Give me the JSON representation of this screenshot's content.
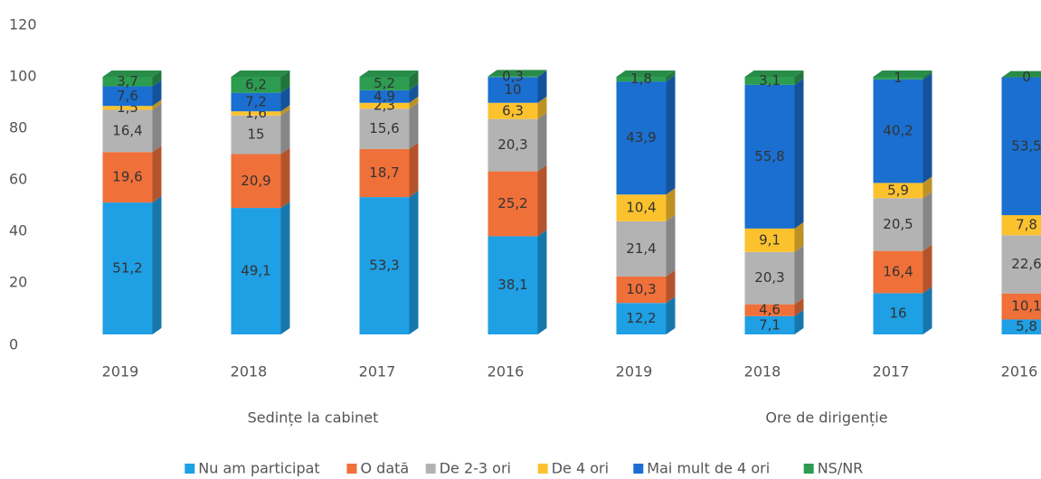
{
  "chart_data": {
    "type": "stacked-bar-3d",
    "categories": [
      "2019",
      "2018",
      "2017",
      "2016",
      "2019",
      "2018",
      "2017",
      "2016"
    ],
    "group_labels": [
      "Sedințe la cabinet",
      "Ore de dirigenție"
    ],
    "series": [
      {
        "name": "Nu am participat",
        "color": "#1f9fe4",
        "values": [
          51.2,
          49.1,
          53.3,
          38.1,
          12.2,
          7.1,
          16,
          5.8
        ],
        "value_labels": [
          "51,2",
          "49,1",
          "53,3",
          "38,1",
          "12,2",
          "7,1",
          "16",
          "5,8"
        ]
      },
      {
        "name": "O dată",
        "color": "#f0703a",
        "values": [
          19.6,
          20.9,
          18.7,
          25.2,
          10.3,
          4.6,
          16.4,
          10.1
        ],
        "value_labels": [
          "19,6",
          "20,9",
          "18,7",
          "25,2",
          "10,3",
          "4,6",
          "16,4",
          "10,1"
        ]
      },
      {
        "name": "De 2-3 ori",
        "color": "#b3b3b3",
        "values": [
          16.4,
          15,
          15.6,
          20.3,
          21.4,
          20.3,
          20.5,
          22.6
        ],
        "value_labels": [
          "16,4",
          "15",
          "15,6",
          "20,3",
          "21,4",
          "20,3",
          "20,5",
          "22,6"
        ]
      },
      {
        "name": "De 4 ori",
        "color": "#fcc22e",
        "values": [
          1.5,
          1.6,
          2.3,
          6.3,
          10.4,
          9.1,
          5.9,
          7.8
        ],
        "value_labels": [
          "1,5",
          "1,6",
          "2,3",
          "6,3",
          "10,4",
          "9,1",
          "5,9",
          "7,8"
        ]
      },
      {
        "name": "Mai mult de 4 ori",
        "color": "#1a6fd0",
        "values": [
          7.6,
          7.2,
          4.9,
          10,
          43.9,
          55.8,
          40.2,
          53.5
        ],
        "value_labels": [
          "7,6",
          "7,2",
          "4,9",
          "10",
          "43,9",
          "55,8",
          "40,2",
          "53,5"
        ]
      },
      {
        "name": "NS/NR",
        "color": "#2c9c50",
        "values": [
          3.7,
          6.2,
          5.2,
          0.3,
          1.8,
          3.1,
          1,
          0
        ],
        "value_labels": [
          "3,7",
          "6,2",
          "5,2",
          "0,3",
          "1,8",
          "3,1",
          "1",
          "0"
        ]
      }
    ],
    "ylim": [
      0,
      120
    ],
    "yticks": [
      0,
      20,
      40,
      60,
      80,
      100,
      120
    ],
    "grid": false,
    "legend": "bottom"
  }
}
